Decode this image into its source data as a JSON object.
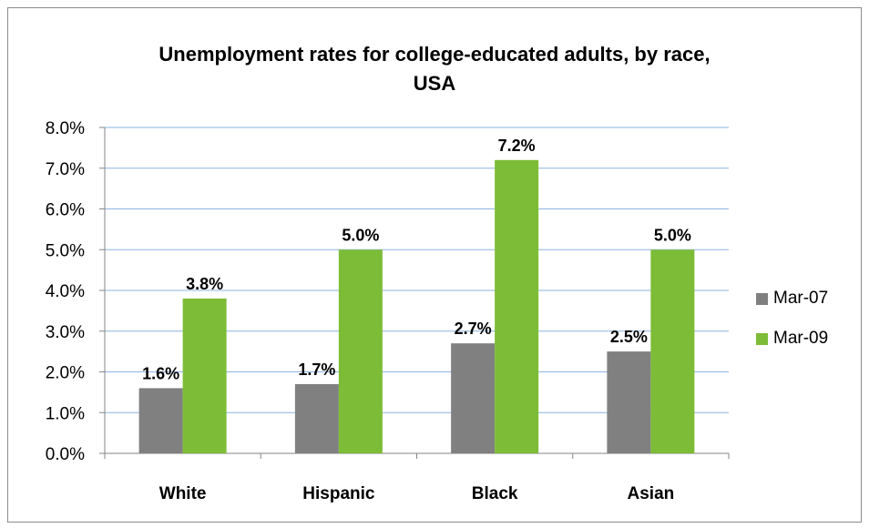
{
  "chart_data": {
    "type": "bar",
    "title_lines": [
      "Unemployment rates for college-educated adults, by race,",
      "USA"
    ],
    "categories": [
      "White",
      "Hispanic",
      "Black",
      "Asian"
    ],
    "series": [
      {
        "name": "Mar-07",
        "values": [
          1.6,
          1.7,
          2.7,
          2.5
        ],
        "labels": [
          "1.6%",
          "1.7%",
          "2.7%",
          "2.5%"
        ],
        "color": "#808080"
      },
      {
        "name": "Mar-09",
        "values": [
          3.8,
          5.0,
          7.2,
          5.0
        ],
        "labels": [
          "3.8%",
          "5.0%",
          "7.2%",
          "5.0%"
        ],
        "color": "#7dbc37"
      }
    ],
    "yticks": [
      "0.0%",
      "1.0%",
      "2.0%",
      "3.0%",
      "4.0%",
      "5.0%",
      "6.0%",
      "7.0%",
      "8.0%"
    ],
    "ylim": [
      0,
      8
    ],
    "grid": true,
    "gridColor": "#8eb4e3",
    "legend_position": "right"
  }
}
